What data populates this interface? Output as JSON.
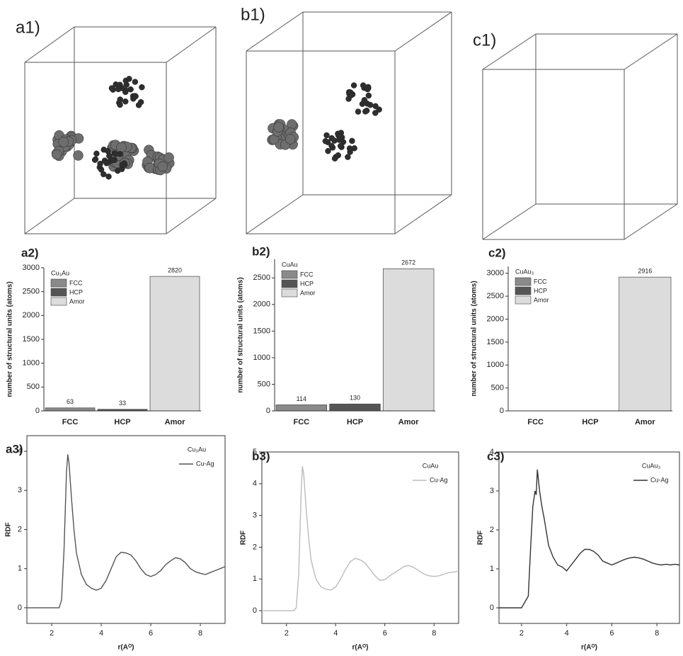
{
  "structures": [
    {
      "label": "a1)"
    },
    {
      "label": "b1)"
    },
    {
      "label": "c1)"
    }
  ],
  "chart_data": [
    {
      "type": "bar",
      "title": "a2)",
      "legend_title": "Cu₃Au",
      "ylabel": "number of structural units (atoms)",
      "categories": [
        "FCC",
        "HCP",
        "Amor"
      ],
      "values": [
        63,
        33,
        2820
      ],
      "colors": [
        "#8a8a8a",
        "#555555",
        "#dcdcdc"
      ],
      "ylim": [
        0,
        3000
      ],
      "yticks": [
        0,
        500,
        1000,
        1500,
        2000,
        2500,
        3000
      ]
    },
    {
      "type": "bar",
      "title": "b2)",
      "legend_title": "CuAu",
      "ylabel": "number of structural units (atoms)",
      "categories": [
        "FCC",
        "HCP",
        "Amor"
      ],
      "values": [
        114,
        130,
        2672
      ],
      "colors": [
        "#8a8a8a",
        "#555555",
        "#dcdcdc"
      ],
      "ylim": [
        0,
        2850
      ],
      "yticks": [
        0,
        500,
        1000,
        1500,
        2000,
        2500
      ]
    },
    {
      "type": "bar",
      "title": "c2)",
      "legend_title": "CuAu₃",
      "ylabel": "number of structural units (atoms)",
      "categories": [
        "FCC",
        "HCP",
        "Amor"
      ],
      "values": [
        null,
        null,
        2916
      ],
      "colors": [
        "#8a8a8a",
        "#555555",
        "#dcdcdc"
      ],
      "ylim": [
        0,
        3150
      ],
      "yticks": [
        0,
        500,
        1000,
        1500,
        2000,
        2500,
        3000
      ]
    },
    {
      "type": "line",
      "title": "a3)",
      "legend_title": "Cu₃Au",
      "xlabel": "r(Aᴼ)",
      "ylabel": "RDF",
      "x": [
        1.0,
        2.0,
        2.3,
        2.4,
        2.5,
        2.6,
        2.65,
        2.7,
        2.8,
        2.9,
        3.0,
        3.2,
        3.4,
        3.6,
        3.8,
        4.0,
        4.2,
        4.4,
        4.6,
        4.8,
        5.0,
        5.2,
        5.4,
        5.6,
        5.8,
        6.0,
        6.2,
        6.4,
        6.6,
        6.8,
        7.0,
        7.2,
        7.4,
        7.6,
        7.8,
        8.0,
        8.2,
        8.4,
        8.6,
        8.8,
        9.0
      ],
      "series": [
        {
          "name": "Cu-Ag",
          "color": "#555555",
          "values": [
            0,
            0,
            0,
            0.2,
            1.5,
            3.5,
            3.92,
            3.7,
            2.8,
            2.0,
            1.4,
            0.85,
            0.6,
            0.5,
            0.45,
            0.5,
            0.7,
            1.0,
            1.3,
            1.42,
            1.4,
            1.35,
            1.2,
            1.0,
            0.85,
            0.8,
            0.85,
            0.95,
            1.1,
            1.2,
            1.28,
            1.25,
            1.15,
            1.0,
            0.92,
            0.88,
            0.85,
            0.9,
            0.95,
            1.0,
            1.05
          ]
        }
      ],
      "xlim": [
        1,
        9
      ],
      "xticks": [
        2,
        4,
        6,
        8
      ],
      "ylim": [
        -0.4,
        4.4
      ],
      "yticks": [
        0,
        1,
        2,
        3,
        4
      ]
    },
    {
      "type": "line",
      "title": "b3)",
      "legend_title": "CuAu",
      "xlabel": "r(Aᴼ)",
      "ylabel": "RDF",
      "x": [
        1.0,
        2.0,
        2.3,
        2.4,
        2.5,
        2.6,
        2.65,
        2.7,
        2.8,
        2.9,
        3.0,
        3.2,
        3.4,
        3.6,
        3.8,
        4.0,
        4.2,
        4.4,
        4.6,
        4.8,
        5.0,
        5.2,
        5.4,
        5.6,
        5.8,
        6.0,
        6.2,
        6.4,
        6.6,
        6.8,
        7.0,
        7.2,
        7.4,
        7.6,
        7.8,
        8.0,
        8.2,
        8.4,
        8.6,
        8.8,
        9.0
      ],
      "series": [
        {
          "name": "Cu-Ag",
          "color": "#bbbbbb",
          "values": [
            0,
            0,
            0,
            0.1,
            1.2,
            3.8,
            4.55,
            4.3,
            3.2,
            2.3,
            1.6,
            1.0,
            0.75,
            0.68,
            0.65,
            0.75,
            1.0,
            1.3,
            1.55,
            1.65,
            1.6,
            1.5,
            1.3,
            1.1,
            0.95,
            0.98,
            1.1,
            1.2,
            1.3,
            1.4,
            1.42,
            1.35,
            1.25,
            1.15,
            1.1,
            1.08,
            1.1,
            1.15,
            1.2,
            1.22,
            1.25
          ]
        }
      ],
      "xlim": [
        1,
        9
      ],
      "xticks": [
        2,
        4,
        6,
        8
      ],
      "ylim": [
        -0.4,
        5
      ],
      "yticks": [
        0,
        1,
        2,
        3,
        4,
        5
      ]
    },
    {
      "type": "line",
      "title": "c3)",
      "legend_title": "CuAu₃",
      "xlabel": "r(Aᴼ)",
      "ylabel": "RDF",
      "x": [
        1.0,
        2.0,
        2.3,
        2.4,
        2.5,
        2.6,
        2.65,
        2.7,
        2.8,
        2.9,
        3.0,
        3.2,
        3.4,
        3.6,
        3.8,
        4.0,
        4.2,
        4.4,
        4.6,
        4.8,
        5.0,
        5.2,
        5.4,
        5.6,
        5.8,
        6.0,
        6.2,
        6.4,
        6.6,
        6.8,
        7.0,
        7.2,
        7.4,
        7.6,
        7.8,
        8.0,
        8.2,
        8.4,
        8.6,
        8.8,
        9.0
      ],
      "series": [
        {
          "name": "Cu-Ag",
          "color": "#333333",
          "values": [
            0,
            0,
            0.3,
            1.5,
            2.6,
            3.0,
            2.9,
            3.55,
            3.0,
            2.6,
            2.3,
            1.6,
            1.3,
            1.1,
            1.05,
            0.95,
            1.1,
            1.25,
            1.4,
            1.5,
            1.5,
            1.45,
            1.35,
            1.2,
            1.15,
            1.1,
            1.15,
            1.2,
            1.25,
            1.28,
            1.3,
            1.28,
            1.25,
            1.2,
            1.15,
            1.12,
            1.1,
            1.12,
            1.1,
            1.12,
            1.1
          ]
        }
      ],
      "xlim": [
        1,
        9
      ],
      "xticks": [
        2,
        4,
        6,
        8
      ],
      "ylim": [
        -0.4,
        4
      ],
      "yticks": [
        0,
        1,
        2,
        3,
        4
      ]
    }
  ]
}
